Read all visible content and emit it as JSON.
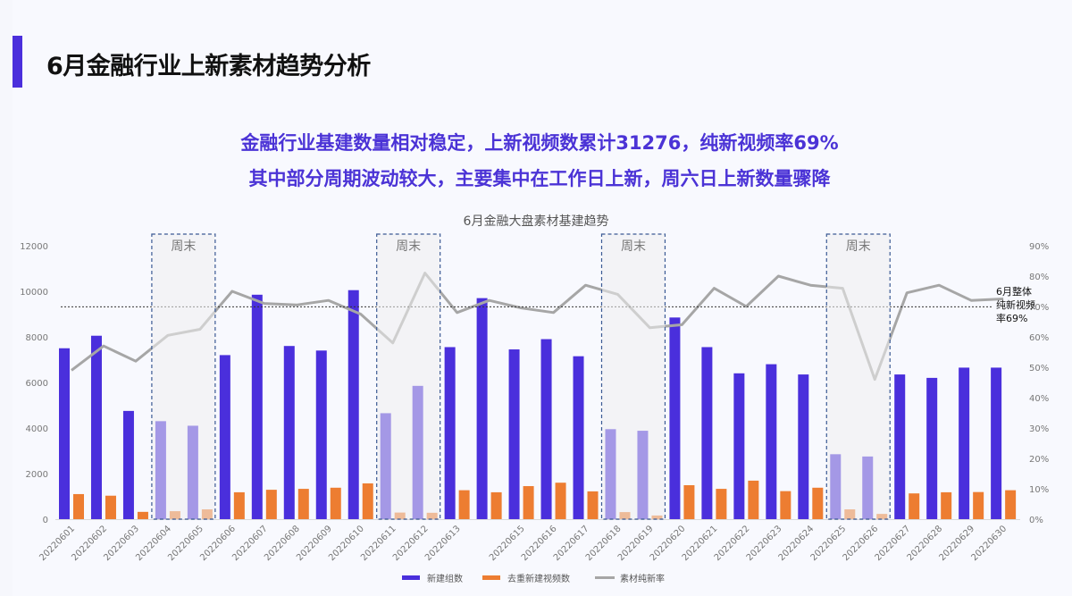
{
  "header": {
    "title": "6月金融行业上新素材趋势分析"
  },
  "summary": {
    "line1": "金融行业基建数量相对稳定，上新视频数累计31276，纯新视频率69%",
    "line2": "其中部分周期波动较大，主要集中在工作日上新，周六日上新数量骤降"
  },
  "colors": {
    "accent": "#4b2fdc",
    "bar_new": "#4a2fdc",
    "bar_dedup": "#ed7d31",
    "line": "#a6a6a6"
  },
  "chart_data": {
    "type": "bar+line",
    "title": "6月金融大盘素材基建趋势",
    "categories": [
      "20220601",
      "20220602",
      "20220603",
      "20220604",
      "20220605",
      "20220606",
      "20220607",
      "20220608",
      "20220609",
      "20220610",
      "20220611",
      "20220612",
      "20220613",
      "",
      "20220615",
      "20220616",
      "20220617",
      "20220618",
      "20220619",
      "20220620",
      "20220621",
      "20220622",
      "20220623",
      "20220624",
      "20220625",
      "20220626",
      "20220627",
      "20220628",
      "20220629",
      "20220630"
    ],
    "series": [
      {
        "name": "新建组数",
        "type": "bar",
        "axis": "left",
        "values": [
          7500,
          8050,
          4750,
          4300,
          4100,
          7200,
          9850,
          7600,
          7400,
          10050,
          4650,
          5850,
          7550,
          9700,
          7450,
          7900,
          7150,
          3950,
          3880,
          8850,
          7550,
          6400,
          6800,
          6350,
          2850,
          2750,
          6350,
          6200,
          6650,
          6650
        ]
      },
      {
        "name": "去重新建视频数",
        "type": "bar",
        "axis": "left",
        "values": [
          1100,
          1030,
          320,
          350,
          430,
          1180,
          1290,
          1330,
          1380,
          1570,
          290,
          280,
          1270,
          1180,
          1450,
          1600,
          1220,
          310,
          160,
          1490,
          1330,
          1690,
          1230,
          1380,
          430,
          230,
          1130,
          1180,
          1190,
          1270
        ]
      },
      {
        "name": "素材纯新率",
        "type": "line",
        "axis": "right",
        "unit": "%",
        "values": [
          49,
          57,
          52,
          60.5,
          62.5,
          75,
          71,
          70.5,
          72,
          67.5,
          58,
          81,
          68,
          72,
          69.5,
          68,
          77,
          74,
          63,
          64,
          76,
          70,
          80,
          77,
          76,
          46,
          74.5,
          77,
          72,
          72.5
        ]
      }
    ],
    "y_left": {
      "min": 0,
      "max": 12000,
      "ticks": [
        "0",
        "2000",
        "4000",
        "6000",
        "8000",
        "10000",
        "12000"
      ]
    },
    "y_right": {
      "min": 0,
      "max": 90,
      "ticks": [
        "0%",
        "10%",
        "20%",
        "30%",
        "40%",
        "50%",
        "60%",
        "70%",
        "80%",
        "90%"
      ]
    },
    "reference_line": {
      "value": 69,
      "axis": "right",
      "label_lines": [
        "6月整体",
        "纯新视频",
        "率69%"
      ]
    },
    "weekend_bands": [
      {
        "from": "20220604",
        "to": "20220605",
        "label": "周末"
      },
      {
        "from": "20220611",
        "to": "20220612",
        "label": "周末"
      },
      {
        "from": "20220618",
        "to": "20220619",
        "label": "周末"
      },
      {
        "from": "20220625",
        "to": "20220626",
        "label": "周末"
      }
    ],
    "weekend_indices": [
      [
        3,
        4
      ],
      [
        10,
        11
      ],
      [
        17,
        18
      ],
      [
        24,
        25
      ]
    ],
    "legend": "bottom",
    "grid": false
  }
}
